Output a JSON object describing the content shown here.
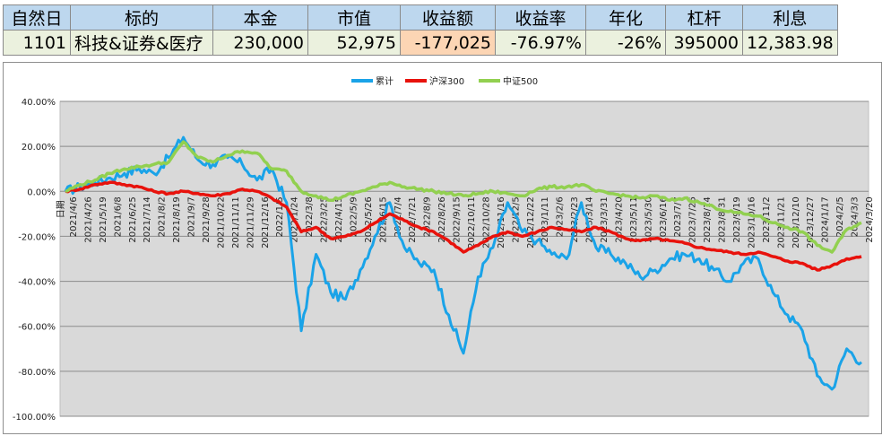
{
  "summary": {
    "headers": [
      "自然日",
      "标的",
      "本金",
      "市值",
      "收益额",
      "收益率",
      "年化",
      "杠杆",
      "利息"
    ],
    "values": [
      "1101",
      "科技&证券&医疗",
      "230,000",
      "52,975",
      "-177,025",
      "-76.97%",
      "-26%",
      "395000",
      "12,383.98"
    ],
    "colors": {
      "header_bg": "#bdd7ee",
      "value_bg": "#ebf1de",
      "negative_bg": "#fcd5b4"
    }
  },
  "chart_data": {
    "type": "line",
    "title": "",
    "xlabel": "",
    "ylabel": "",
    "ylim": [
      -1.0,
      0.4
    ],
    "yticks": [
      "40.00%",
      "20.00%",
      "0.00%",
      "-20.00%",
      "-40.00%",
      "-60.00%",
      "-80.00%",
      "-100.00%"
    ],
    "ytick_values": [
      0.4,
      0.2,
      0.0,
      -0.2,
      -0.4,
      -0.6,
      -0.8,
      -1.0
    ],
    "x_first_label": "日期",
    "categories": [
      "2021/4/6",
      "2021/4/26",
      "2021/5/19",
      "2021/6/8",
      "2021/6/25",
      "2021/7/14",
      "2021/8/2",
      "2021/8/19",
      "2021/9/7",
      "2021/9/28",
      "2021/10/22",
      "2021/11/11",
      "2021/11/29",
      "2021/12/16",
      "2022/1/5",
      "2022/1/24",
      "2022/3/8",
      "2022/3/25",
      "2022/4/15",
      "2022/5/9",
      "2022/5/26",
      "2022/6/15",
      "2022/7/4",
      "2022/7/21",
      "2022/8/9",
      "2022/8/26",
      "2022/9/15",
      "2022/10/11",
      "2022/10/28",
      "2022/11/16",
      "2022/12/5",
      "2022/12/22",
      "2023/1/11",
      "2023/2/6",
      "2023/2/23",
      "2023/3/14",
      "2023/3/31",
      "2023/4/20",
      "2023/5/11",
      "2023/5/30",
      "2023/6/16",
      "2023/7/7",
      "2023/7/26",
      "2023/8/14",
      "2023/8/31",
      "2023/9/19",
      "2023/10/16",
      "2023/11/2",
      "2023/11/21",
      "2023/12/10",
      "2023/12/27",
      "2024/1/17",
      "2024/2/5",
      "2024/3/3",
      "2024/3/20"
    ],
    "grid": true,
    "legend": "top-center",
    "background": "#d9d9d9",
    "series": [
      {
        "name": "累计",
        "color": "#1aa3e8",
        "values": [
          0.0,
          0.02,
          0.04,
          0.06,
          0.08,
          0.1,
          0.08,
          0.15,
          0.24,
          0.14,
          0.12,
          0.15,
          0.12,
          0.05,
          0.1,
          -0.05,
          -0.62,
          -0.28,
          -0.45,
          -0.48,
          -0.35,
          -0.2,
          -0.05,
          -0.25,
          -0.32,
          -0.35,
          -0.55,
          -0.72,
          -0.38,
          -0.25,
          -0.05,
          -0.18,
          -0.22,
          -0.28,
          -0.3,
          -0.05,
          -0.25,
          -0.28,
          -0.32,
          -0.38,
          -0.35,
          -0.3,
          -0.28,
          -0.3,
          -0.35,
          -0.4,
          -0.32,
          -0.3,
          -0.45,
          -0.55,
          -0.62,
          -0.82,
          -0.88,
          -0.7,
          -0.76
        ]
      },
      {
        "name": "沪深300",
        "color": "#e8120c",
        "values": [
          0.0,
          0.01,
          0.03,
          0.04,
          0.03,
          0.02,
          0.0,
          -0.01,
          0.0,
          -0.01,
          -0.02,
          -0.01,
          0.01,
          0.0,
          -0.03,
          -0.07,
          -0.18,
          -0.16,
          -0.21,
          -0.2,
          -0.18,
          -0.14,
          -0.1,
          -0.13,
          -0.16,
          -0.18,
          -0.22,
          -0.27,
          -0.24,
          -0.2,
          -0.18,
          -0.2,
          -0.18,
          -0.16,
          -0.17,
          -0.18,
          -0.16,
          -0.18,
          -0.21,
          -0.22,
          -0.21,
          -0.22,
          -0.23,
          -0.25,
          -0.26,
          -0.27,
          -0.28,
          -0.27,
          -0.29,
          -0.31,
          -0.32,
          -0.35,
          -0.33,
          -0.3,
          -0.29
        ]
      },
      {
        "name": "中证500",
        "color": "#92d050",
        "values": [
          0.0,
          0.03,
          0.05,
          0.08,
          0.1,
          0.11,
          0.12,
          0.13,
          0.22,
          0.15,
          0.13,
          0.16,
          0.18,
          0.17,
          0.1,
          0.09,
          0.0,
          -0.02,
          -0.04,
          -0.02,
          0.0,
          0.02,
          0.04,
          0.02,
          0.01,
          0.0,
          -0.01,
          -0.02,
          -0.01,
          0.0,
          -0.01,
          -0.02,
          0.01,
          0.02,
          0.02,
          0.03,
          0.0,
          -0.01,
          -0.02,
          -0.03,
          -0.02,
          -0.04,
          -0.03,
          -0.05,
          -0.07,
          -0.09,
          -0.1,
          -0.11,
          -0.14,
          -0.16,
          -0.18,
          -0.24,
          -0.27,
          -0.17,
          -0.14
        ]
      }
    ]
  }
}
